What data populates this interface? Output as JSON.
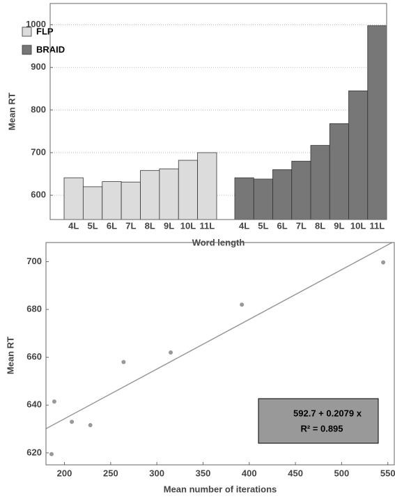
{
  "chart_data": [
    {
      "type": "bar",
      "xlabel": "Word length",
      "ylabel": "Mean RT",
      "categories": [
        "4L",
        "5L",
        "6L",
        "7L",
        "8L",
        "9L",
        "10L",
        "11L"
      ],
      "series": [
        {
          "name": "FLP",
          "color": "#dcdcdc",
          "values": [
            641,
            620,
            632,
            631,
            658,
            662,
            682,
            700
          ]
        },
        {
          "name": "BRAID",
          "color": "#777777",
          "values": [
            641,
            638,
            660,
            680,
            717,
            768,
            845,
            998
          ]
        }
      ],
      "ylim": [
        543,
        1050
      ],
      "yticks": [
        600,
        700,
        800,
        900,
        1000
      ],
      "grid": true,
      "legend": "upper left"
    },
    {
      "type": "scatter",
      "xlabel": "Mean number of iterations",
      "ylabel": "Mean RT",
      "x": [
        186,
        189,
        208,
        228,
        264,
        315,
        392,
        545
      ],
      "values": [
        619.5,
        641.5,
        633,
        631.6,
        658,
        662,
        682,
        699.7
      ],
      "color": "#999999",
      "xlim": [
        180,
        557
      ],
      "xticks": [
        200,
        250,
        300,
        350,
        400,
        450,
        500,
        550
      ],
      "ylim": [
        615,
        708
      ],
      "yticks": [
        620,
        640,
        660,
        680,
        700
      ],
      "fit": {
        "intercept": 592.7,
        "slope": 0.2079,
        "color": "#999999"
      },
      "annotation": [
        "592.7 + 0.2079 x",
        "R² = 0.895"
      ],
      "grid": false
    }
  ]
}
